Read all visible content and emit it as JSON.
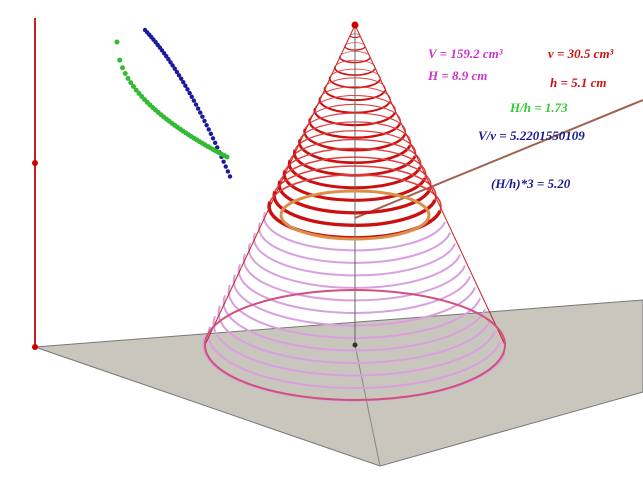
{
  "labels": {
    "big_volume": "V = 159.2 cm³",
    "small_volume": "v = 30.5 cm³",
    "big_height": "H = 8.9 cm",
    "small_height": "h = 5.1 cm",
    "height_ratio": "H/h = 1.73",
    "volume_ratio": "V/v = 5.2201550109",
    "cubed_ratio": "(H/h)*3 = 5.20"
  }
}
